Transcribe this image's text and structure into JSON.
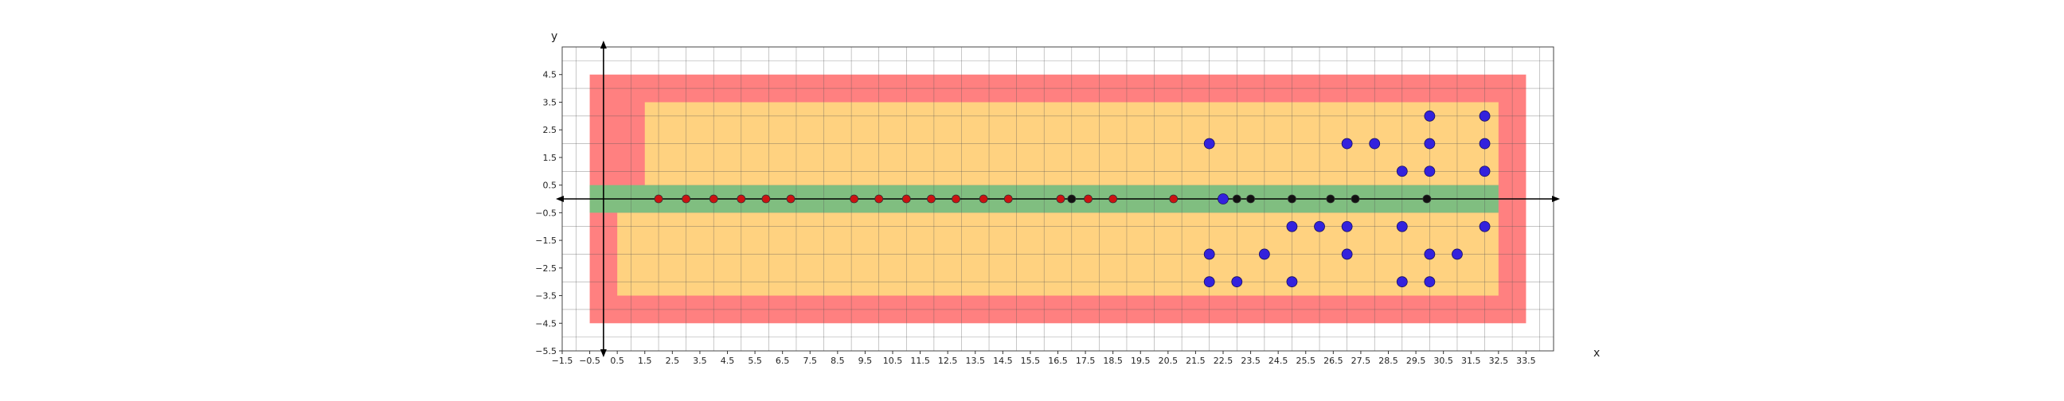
{
  "chart_data": {
    "type": "scatter",
    "title": "",
    "xlabel": "x",
    "ylabel": "y",
    "xlim": [
      -1.5,
      34.5
    ],
    "ylim": [
      -5.5,
      5.5
    ],
    "grid": true,
    "x_ticks": [
      -1.5,
      -0.5,
      0.5,
      1.5,
      2.5,
      3.5,
      4.5,
      5.5,
      6.5,
      7.5,
      8.5,
      9.5,
      10.5,
      11.5,
      12.5,
      13.5,
      14.5,
      15.5,
      16.5,
      17.5,
      18.5,
      19.5,
      20.5,
      21.5,
      22.5,
      23.5,
      24.5,
      25.5,
      26.5,
      27.5,
      28.5,
      29.5,
      30.5,
      31.5,
      32.5,
      33.5
    ],
    "x_tick_labels": [
      "−1.5",
      "−0.5",
      "0.5",
      "1.5",
      "2.5",
      "3.5",
      "4.5",
      "5.5",
      "6.5",
      "7.5",
      "8.5",
      "9.5",
      "10.5",
      "11.5",
      "12.5",
      "13.5",
      "14.5",
      "15.5",
      "16.5",
      "17.5",
      "18.5",
      "19.5",
      "20.5",
      "21.5",
      "22.5",
      "23.5",
      "24.5",
      "25.5",
      "26.5",
      "27.5",
      "28.5",
      "29.5",
      "30.5",
      "31.5",
      "32.5",
      "33.5"
    ],
    "y_ticks": [
      4.5,
      3.5,
      2.5,
      1.5,
      0.5,
      -0.5,
      -1.5,
      -2.5,
      -3.5,
      -4.5,
      -5.5
    ],
    "y_tick_labels": [
      "4.5",
      "3.5",
      "2.5",
      "1.5",
      "0.5",
      "−0.5",
      "−1.5",
      "−2.5",
      "−3.5",
      "−4.5",
      "−5.5"
    ],
    "regions": [
      {
        "name": "outer",
        "color": "#ff8080",
        "x": [
          -0.5,
          33.5
        ],
        "y": [
          -4.5,
          4.5
        ]
      },
      {
        "name": "upper-middle",
        "color": "#ffd280",
        "x": [
          1.5,
          32.5
        ],
        "y": [
          0.5,
          3.5
        ]
      },
      {
        "name": "lower-middle",
        "color": "#ffd280",
        "x": [
          0.5,
          32.5
        ],
        "y": [
          -3.5,
          -0.5
        ]
      },
      {
        "name": "lane",
        "color": "#80be80",
        "x": [
          -0.5,
          32.5
        ],
        "y": [
          -0.5,
          0.5
        ]
      }
    ],
    "series": [
      {
        "color": "#cc1111",
        "size": "small",
        "points": [
          [
            2,
            0
          ],
          [
            3,
            0
          ],
          [
            4,
            0
          ],
          [
            5,
            0
          ],
          [
            5.9,
            0
          ],
          [
            6.8,
            0
          ],
          [
            9.1,
            0
          ],
          [
            10,
            0
          ],
          [
            11,
            0
          ],
          [
            11.9,
            0
          ],
          [
            12.8,
            0
          ],
          [
            13.8,
            0
          ],
          [
            14.7,
            0
          ],
          [
            16.6,
            0
          ],
          [
            17.6,
            0
          ],
          [
            18.5,
            0
          ],
          [
            20.7,
            0
          ]
        ]
      },
      {
        "color": "#111111",
        "size": "small",
        "points": [
          [
            17,
            0
          ],
          [
            23,
            0
          ],
          [
            23.5,
            0
          ],
          [
            25,
            0
          ],
          [
            26.4,
            0
          ],
          [
            27.3,
            0
          ],
          [
            29.9,
            0
          ]
        ]
      },
      {
        "color": "#3322dd",
        "size": "large",
        "points": [
          [
            22.5,
            0
          ],
          [
            22,
            2
          ],
          [
            27,
            2
          ],
          [
            28,
            2
          ],
          [
            30,
            3
          ],
          [
            30,
            2
          ],
          [
            30,
            1
          ],
          [
            29,
            1
          ],
          [
            32,
            3
          ],
          [
            32,
            2
          ],
          [
            32,
            1
          ],
          [
            25,
            -1
          ],
          [
            26,
            -1
          ],
          [
            27,
            -1
          ],
          [
            29,
            -1
          ],
          [
            32,
            -1
          ],
          [
            22,
            -2
          ],
          [
            24,
            -2
          ],
          [
            27,
            -2
          ],
          [
            30,
            -2
          ],
          [
            31,
            -2
          ],
          [
            22,
            -3
          ],
          [
            23,
            -3
          ],
          [
            25,
            -3
          ],
          [
            29,
            -3
          ],
          [
            30,
            -3
          ]
        ]
      }
    ]
  }
}
